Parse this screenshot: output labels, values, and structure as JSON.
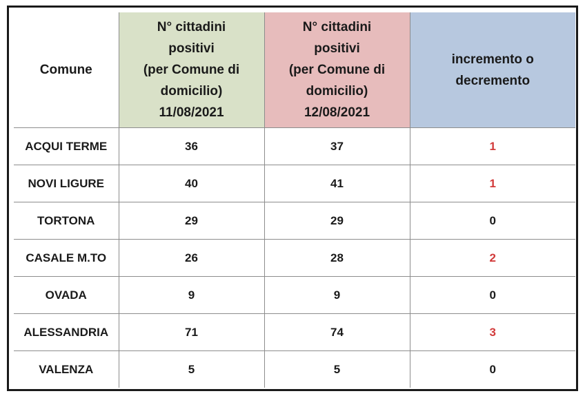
{
  "headers": {
    "comune": "Comune",
    "date1": [
      "N° cittadini",
      "positivi",
      "(per Comune di",
      "domicilio)",
      "11/08/2021"
    ],
    "date2": [
      "N° cittadini",
      "positivi",
      "(per Comune di",
      "domicilio)",
      "12/08/2021"
    ],
    "delta": [
      "incremento o",
      "decremento"
    ]
  },
  "rows": [
    {
      "comune": "ACQUI TERME",
      "d1": "36",
      "d2": "37",
      "delta": "1"
    },
    {
      "comune": "NOVI LIGURE",
      "d1": "40",
      "d2": "41",
      "delta": "1"
    },
    {
      "comune": "TORTONA",
      "d1": "29",
      "d2": "29",
      "delta": "0"
    },
    {
      "comune": "CASALE M.TO",
      "d1": "26",
      "d2": "28",
      "delta": "2"
    },
    {
      "comune": "OVADA",
      "d1": "9",
      "d2": "9",
      "delta": "0"
    },
    {
      "comune": "ALESSANDRIA",
      "d1": "71",
      "d2": "74",
      "delta": "3"
    },
    {
      "comune": "VALENZA",
      "d1": "5",
      "d2": "5",
      "delta": "0"
    }
  ],
  "colors": {
    "header_date1": "#d9e1c8",
    "header_date2": "#e7bcbc",
    "header_delta": "#b7c8df",
    "delta_positive": "#d23a3a"
  }
}
